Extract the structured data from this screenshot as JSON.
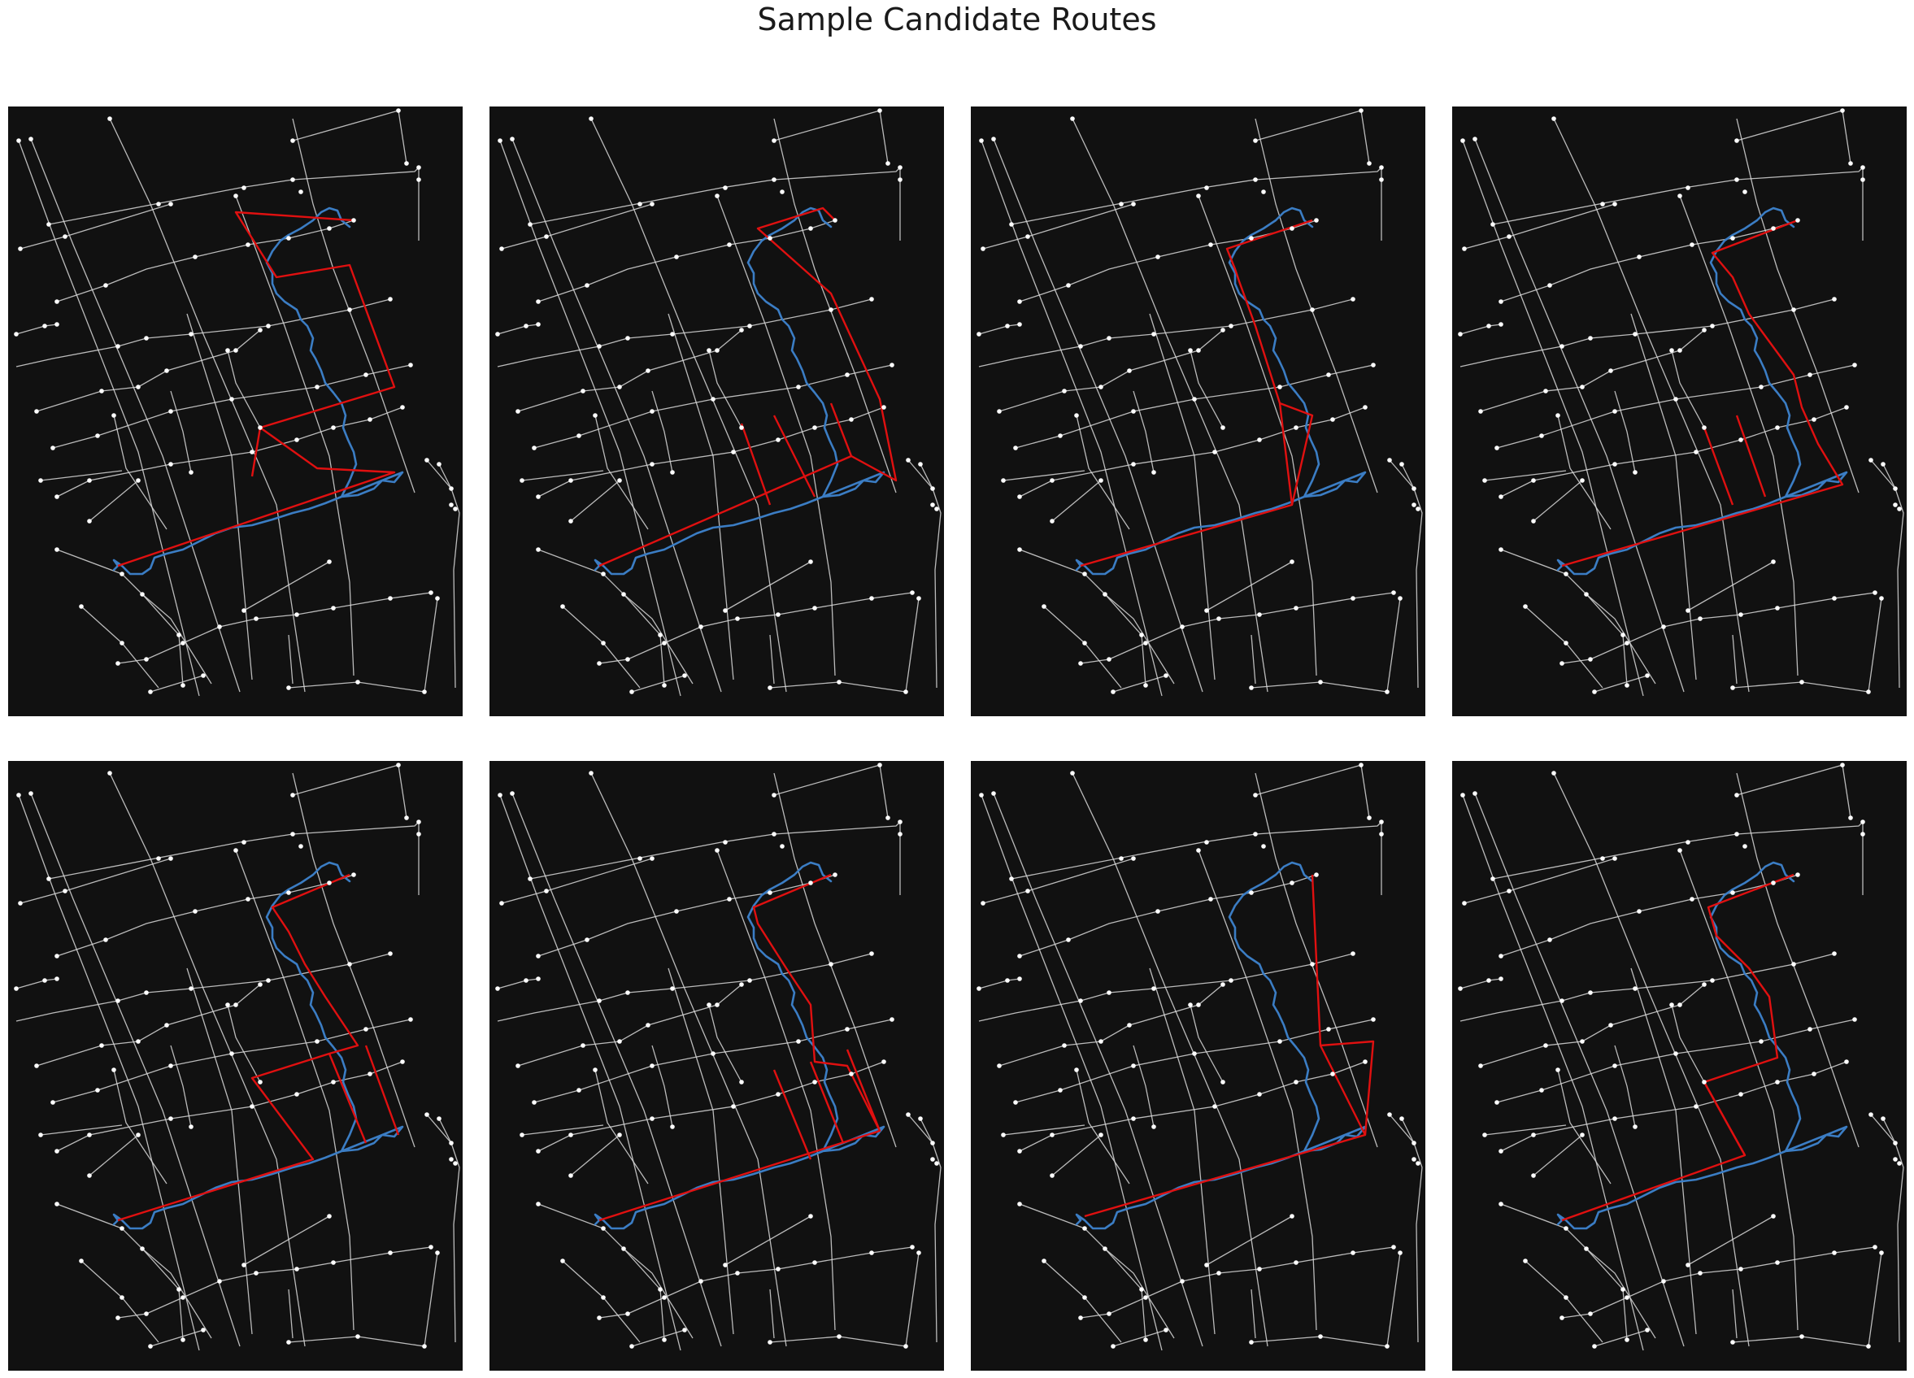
{
  "figure": {
    "title": "Sample Candidate Routes"
  },
  "colors": {
    "background": "#111111",
    "street": "#d9d9d9",
    "node": "#ffffff",
    "candidate_route": "#e01010",
    "reference_track": "#3b7dc4"
  },
  "panels": [
    {
      "id": 1,
      "variant": "wide-loop-single-block"
    },
    {
      "id": 2,
      "variant": "double-block-east"
    },
    {
      "id": 3,
      "variant": "north-jog-single-block"
    },
    {
      "id": 4,
      "variant": "north-jog-double-block"
    },
    {
      "id": 5,
      "variant": "north-jog-wide-double"
    },
    {
      "id": 6,
      "variant": "north-jog-east-double"
    },
    {
      "id": 7,
      "variant": "wide-loop-east-block"
    },
    {
      "id": 8,
      "variant": "north-jog-west-block"
    }
  ]
}
